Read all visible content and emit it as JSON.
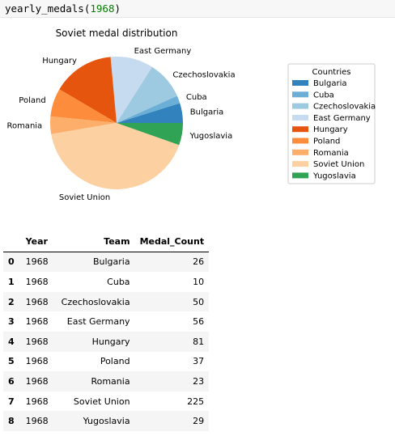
{
  "code_cell": {
    "function_name": "yearly_medals",
    "open_paren": "(",
    "argument": "1968",
    "close_paren": ")"
  },
  "chart_data": {
    "type": "pie",
    "title": "Soviet medal distribution",
    "categories": [
      "Bulgaria",
      "Cuba",
      "Czechoslovakia",
      "East Germany",
      "Hungary",
      "Poland",
      "Romania",
      "Soviet Union",
      "Yugoslavia"
    ],
    "values": [
      26,
      10,
      50,
      56,
      81,
      37,
      23,
      225,
      29
    ],
    "colors": [
      "#3182bd",
      "#6baed6",
      "#9ecae1",
      "#c6dbef",
      "#e6550d",
      "#fd8d3c",
      "#fdae6b",
      "#fdd0a2",
      "#31a354"
    ],
    "start_angle_deg": 0,
    "direction": "counterclockwise",
    "legend": {
      "title": "Countries",
      "placement": "right",
      "entries": [
        "Bulgaria",
        "Cuba",
        "Czechoslovakia",
        "East Germany",
        "Hungary",
        "Poland",
        "Romania",
        "Soviet Union",
        "Yugoslavia"
      ]
    }
  },
  "table": {
    "columns": [
      "",
      "Year",
      "Team",
      "Medal_Count"
    ],
    "rows": [
      {
        "index": "0",
        "year": "1968",
        "team": "Bulgaria",
        "count": "26"
      },
      {
        "index": "1",
        "year": "1968",
        "team": "Cuba",
        "count": "10"
      },
      {
        "index": "2",
        "year": "1968",
        "team": "Czechoslovakia",
        "count": "50"
      },
      {
        "index": "3",
        "year": "1968",
        "team": "East Germany",
        "count": "56"
      },
      {
        "index": "4",
        "year": "1968",
        "team": "Hungary",
        "count": "81"
      },
      {
        "index": "5",
        "year": "1968",
        "team": "Poland",
        "count": "37"
      },
      {
        "index": "6",
        "year": "1968",
        "team": "Romania",
        "count": "23"
      },
      {
        "index": "7",
        "year": "1968",
        "team": "Soviet Union",
        "count": "225"
      },
      {
        "index": "8",
        "year": "1968",
        "team": "Yugoslavia",
        "count": "29"
      }
    ]
  }
}
